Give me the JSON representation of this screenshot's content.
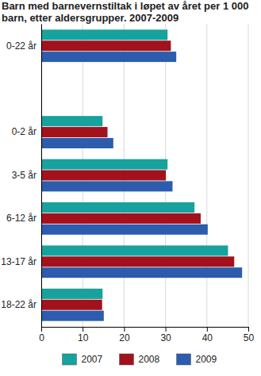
{
  "chart_data": {
    "type": "bar",
    "orientation": "horizontal",
    "title": "Barn med barnevernstiltak i løpet av året per 1 000 barn, etter aldersgrupper. 2007-2009",
    "categories": [
      "0-22 år",
      null,
      "0-2 år",
      "3-5 år",
      "6-12 år",
      "13-17 år",
      "18-22 år"
    ],
    "series": [
      {
        "name": "2007",
        "color": "#17a29d",
        "values": [
          30.5,
          null,
          14.8,
          30.5,
          37.0,
          45.1,
          14.8
        ]
      },
      {
        "name": "2008",
        "color": "#a3111c",
        "values": [
          31.3,
          null,
          16.0,
          30.1,
          38.5,
          46.6,
          14.7
        ]
      },
      {
        "name": "2009",
        "color": "#2b5cae",
        "values": [
          32.6,
          null,
          17.4,
          31.7,
          40.2,
          48.5,
          15.1
        ]
      }
    ],
    "xlim": [
      0,
      50
    ],
    "xticks": [
      0,
      10,
      20,
      30,
      40,
      50
    ],
    "grid": true,
    "legend": "bottom"
  }
}
